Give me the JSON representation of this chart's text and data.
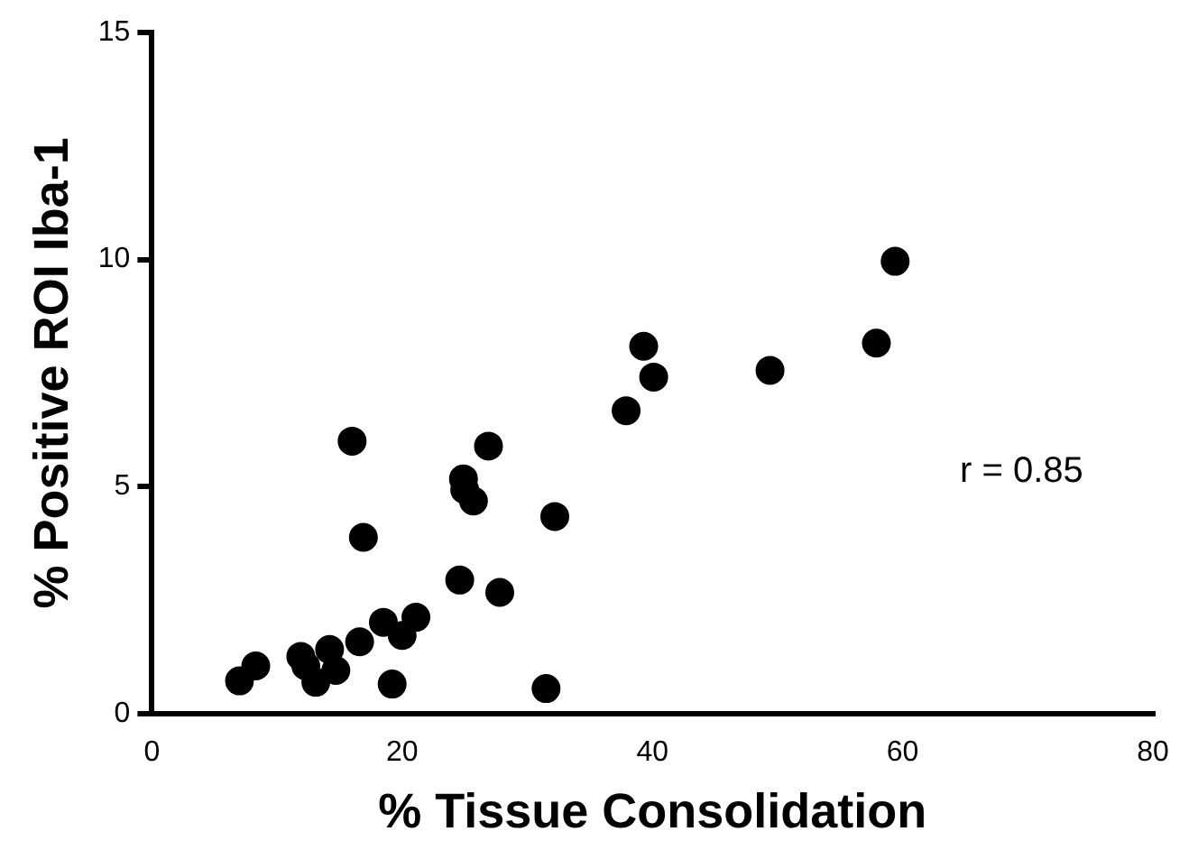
{
  "chart_data": {
    "type": "scatter",
    "xlabel": "% Tissue Consolidation",
    "ylabel": "% Positive ROI Iba-1",
    "x": [
      7.0,
      8.3,
      11.9,
      14.2,
      13.1,
      14.7,
      12.3,
      16.0,
      16.9,
      16.6,
      18.5,
      20.0,
      21.1,
      19.2,
      24.6,
      24.9,
      25.0,
      25.7,
      26.9,
      27.8,
      32.2,
      31.5,
      37.9,
      39.3,
      40.1,
      49.4,
      57.9,
      59.4
    ],
    "values": [
      0.72,
      1.05,
      1.26,
      1.41,
      0.69,
      0.95,
      1.05,
      6.0,
      3.88,
      1.58,
      2.01,
      1.72,
      2.12,
      0.65,
      2.94,
      5.17,
      4.93,
      4.68,
      5.89,
      2.67,
      4.34,
      0.55,
      6.67,
      8.09,
      7.41,
      7.56,
      8.16,
      9.96
    ],
    "color": "#000000",
    "marker": "circle",
    "xlim": [
      0,
      80
    ],
    "xticks": [
      0,
      20,
      40,
      60,
      80
    ],
    "ylim": [
      0,
      15
    ],
    "yticks": [
      0,
      5,
      10,
      15
    ],
    "grid": false,
    "legend": false,
    "annotations": [
      "r = 0.85"
    ]
  }
}
